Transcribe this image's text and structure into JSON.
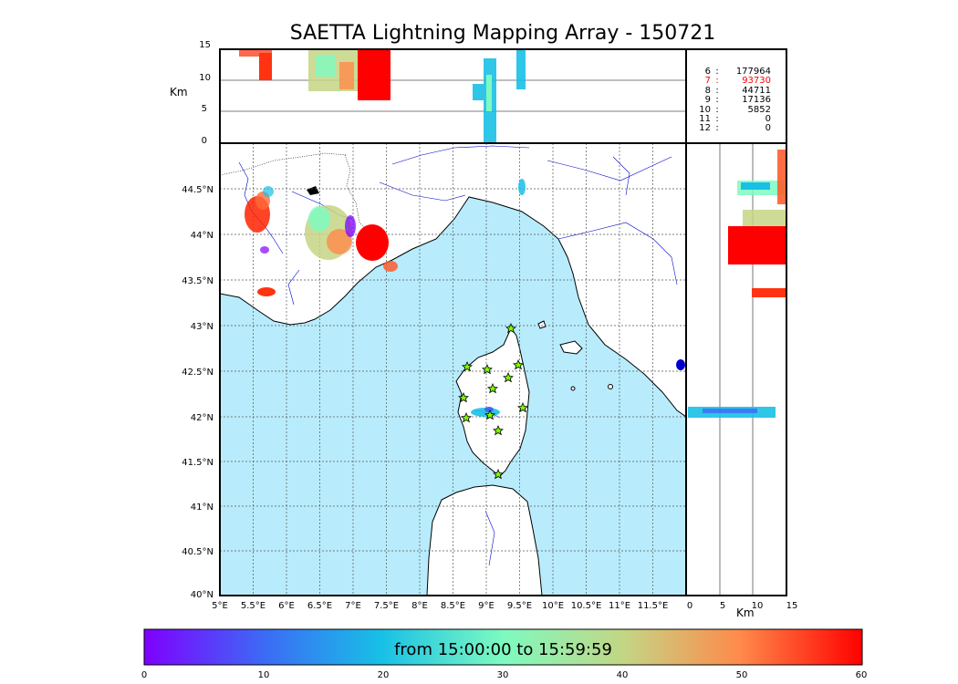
{
  "title": "SAETTA Lightning Mapping Array - 150721",
  "altitude_panel": {
    "ylabel": "Km",
    "yticks": [
      "15",
      "10",
      "5",
      "0"
    ]
  },
  "side_panel": {
    "xlabel": "Km",
    "xticks": [
      "0",
      "5",
      "10",
      "15"
    ]
  },
  "map": {
    "lon_ticks": [
      "5°E",
      "5.5°E",
      "6°E",
      "6.5°E",
      "7°E",
      "7.5°E",
      "8°E",
      "8.5°E",
      "9°E",
      "9.5°E",
      "10°E",
      "10.5°E",
      "11°E",
      "11.5°E"
    ],
    "lat_ticks": [
      "44.5°N",
      "44°N",
      "43.5°N",
      "43°N",
      "42.5°N",
      "42°N",
      "41.5°N",
      "41°N",
      "40.5°N",
      "40°N"
    ],
    "sea_color": "#b8ecfc",
    "station_color": "#7cfc00"
  },
  "station_counts": [
    {
      "level": "6",
      "count": "177964",
      "highlight": false
    },
    {
      "level": "7",
      "count": "93730",
      "highlight": true
    },
    {
      "level": "8",
      "count": "44711",
      "highlight": false
    },
    {
      "level": "9",
      "count": "17136",
      "highlight": false
    },
    {
      "level": "10",
      "count": "5852",
      "highlight": false
    },
    {
      "level": "11",
      "count": "0",
      "highlight": false
    },
    {
      "level": "12",
      "count": "0",
      "highlight": false
    }
  ],
  "stats_separator": ":",
  "highlight_color": "#ff0000",
  "colorbar": {
    "label": "from 15:00:00 to 15:59:59",
    "ticks": [
      "0",
      "10",
      "20",
      "30",
      "40",
      "50",
      "60"
    ]
  }
}
